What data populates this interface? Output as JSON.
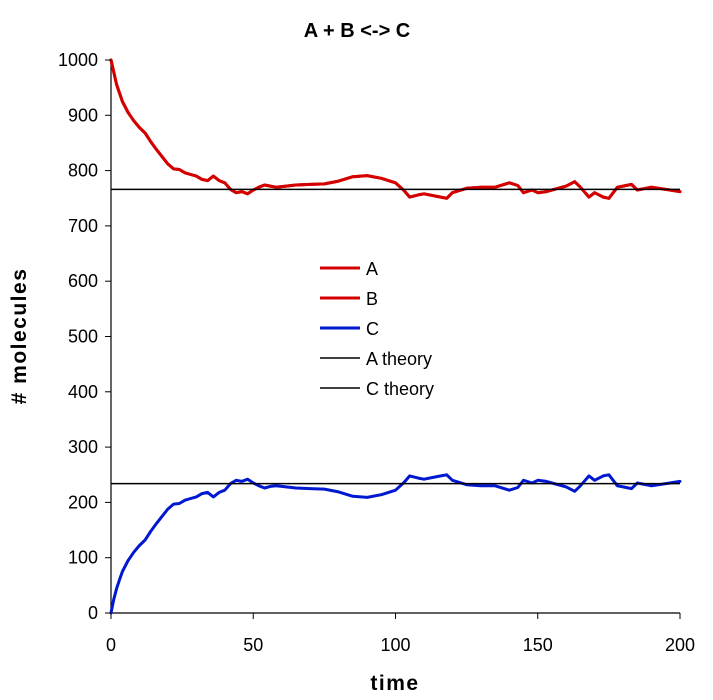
{
  "chart_data": {
    "type": "line",
    "title": "A +  B <->  C",
    "xlabel": "time",
    "ylabel": "# molecules",
    "xlim": [
      0,
      200
    ],
    "ylim": [
      0,
      1000
    ],
    "x_ticks": [
      0,
      50,
      100,
      150,
      200
    ],
    "y_ticks": [
      0,
      100,
      200,
      300,
      400,
      500,
      600,
      700,
      800,
      900,
      1000
    ],
    "grid": false,
    "legend_position": "center",
    "series": [
      {
        "name": "A",
        "color": "#d40000",
        "x": [
          0,
          2,
          4,
          6,
          8,
          10,
          12,
          14,
          16,
          18,
          20,
          22,
          24,
          26,
          28,
          30,
          32,
          34,
          36,
          38,
          40,
          42,
          44,
          46,
          48,
          50,
          52,
          54,
          56,
          58,
          60,
          65,
          70,
          75,
          80,
          85,
          90,
          95,
          100,
          103,
          105,
          108,
          110,
          115,
          118,
          120,
          125,
          130,
          135,
          140,
          143,
          145,
          148,
          150,
          153,
          155,
          160,
          163,
          165,
          168,
          170,
          173,
          175,
          178,
          180,
          183,
          185,
          190,
          195,
          200
        ],
        "values": [
          1000,
          955,
          925,
          905,
          890,
          878,
          868,
          852,
          838,
          825,
          812,
          803,
          802,
          796,
          793,
          790,
          784,
          782,
          790,
          782,
          778,
          766,
          760,
          762,
          758,
          765,
          770,
          774,
          772,
          770,
          771,
          774,
          775,
          776,
          781,
          789,
          791,
          786,
          778,
          764,
          752,
          756,
          758,
          753,
          750,
          760,
          768,
          770,
          770,
          778,
          773,
          760,
          765,
          760,
          762,
          765,
          772,
          780,
          770,
          752,
          760,
          752,
          750,
          770,
          772,
          775,
          765,
          770,
          766,
          762
        ]
      },
      {
        "name": "B",
        "color": "#d40000",
        "x": [
          0,
          2,
          4,
          6,
          8,
          10,
          12,
          14,
          16,
          18,
          20,
          22,
          24,
          26,
          28,
          30,
          32,
          34,
          36,
          38,
          40,
          42,
          44,
          46,
          48,
          50,
          52,
          54,
          56,
          58,
          60,
          65,
          70,
          75,
          80,
          85,
          90,
          95,
          100,
          103,
          105,
          108,
          110,
          115,
          118,
          120,
          125,
          130,
          135,
          140,
          143,
          145,
          148,
          150,
          153,
          155,
          160,
          163,
          165,
          168,
          170,
          173,
          175,
          178,
          180,
          183,
          185,
          190,
          195,
          200
        ],
        "values": [
          1000,
          955,
          925,
          905,
          890,
          878,
          868,
          852,
          838,
          825,
          812,
          803,
          802,
          796,
          793,
          790,
          784,
          782,
          790,
          782,
          778,
          766,
          760,
          762,
          758,
          765,
          770,
          774,
          772,
          770,
          771,
          774,
          775,
          776,
          781,
          789,
          791,
          786,
          778,
          764,
          752,
          756,
          758,
          753,
          750,
          760,
          768,
          770,
          770,
          778,
          773,
          760,
          765,
          760,
          762,
          765,
          772,
          780,
          770,
          752,
          760,
          752,
          750,
          770,
          772,
          775,
          765,
          770,
          766,
          762
        ]
      },
      {
        "name": "C",
        "color": "#0018d0",
        "x": [
          0,
          1,
          2,
          3,
          4,
          6,
          8,
          10,
          12,
          14,
          16,
          18,
          20,
          22,
          24,
          26,
          28,
          30,
          32,
          34,
          36,
          38,
          40,
          42,
          44,
          46,
          48,
          50,
          52,
          54,
          56,
          58,
          60,
          65,
          70,
          75,
          80,
          85,
          90,
          95,
          100,
          103,
          105,
          108,
          110,
          115,
          118,
          120,
          125,
          130,
          135,
          140,
          143,
          145,
          148,
          150,
          153,
          155,
          160,
          163,
          165,
          168,
          170,
          173,
          175,
          178,
          180,
          183,
          185,
          190,
          195,
          200
        ],
        "values": [
          0,
          25,
          45,
          60,
          75,
          95,
          110,
          122,
          132,
          148,
          162,
          175,
          188,
          197,
          198,
          204,
          207,
          210,
          216,
          218,
          210,
          218,
          222,
          234,
          240,
          238,
          242,
          235,
          230,
          226,
          229,
          230,
          229,
          226,
          225,
          224,
          219,
          211,
          209,
          214,
          222,
          236,
          248,
          244,
          242,
          247,
          250,
          240,
          232,
          230,
          230,
          222,
          227,
          240,
          235,
          240,
          238,
          235,
          228,
          220,
          230,
          248,
          240,
          248,
          250,
          230,
          228,
          225,
          235,
          230,
          234,
          238
        ]
      }
    ],
    "reference_lines": [
      {
        "name": "A theory",
        "y": 766,
        "color": "#000000"
      },
      {
        "name": "C theory",
        "y": 234,
        "color": "#000000"
      }
    ]
  }
}
